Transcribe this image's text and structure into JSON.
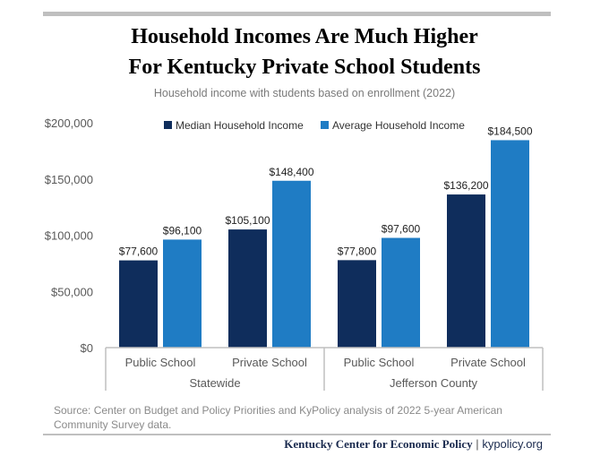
{
  "header": {
    "title_line1": "Household Incomes Are Much Higher",
    "title_line2": "For Kentucky Private School Students",
    "subtitle": "Household income with students based on enrollment (2022)"
  },
  "footer": {
    "source": "Source: Center on Budget and Policy Priorities and KyPolicy analysis of 2022 5-year American Community Survey data.",
    "org": "Kentucky Center for Economic Policy",
    "separator": "|",
    "site": "kypolicy.org"
  },
  "colors": {
    "median": "#0f2d5c",
    "average": "#1f7cc4",
    "axis_text": "#595959",
    "rule": "#bfbfbf"
  },
  "chart_data": {
    "type": "bar",
    "title": "Household income with students based on enrollment (2022)",
    "categories": [
      "Public School",
      "Private School",
      "Public School",
      "Private School"
    ],
    "groups": [
      {
        "label": "Statewide",
        "categories": [
          "Public School",
          "Private School"
        ]
      },
      {
        "label": "Jefferson County",
        "categories": [
          "Public School",
          "Private School"
        ]
      }
    ],
    "series": [
      {
        "name": "Median Household Income",
        "values": [
          77600,
          105100,
          77800,
          136200
        ],
        "labels": [
          "$77,600",
          "$105,100",
          "$77,800",
          "$136,200"
        ]
      },
      {
        "name": "Average Household Income",
        "values": [
          96100,
          148400,
          97600,
          184500
        ],
        "labels": [
          "$96,100",
          "$148,400",
          "$97,600",
          "$184,500"
        ]
      }
    ],
    "yticks": [
      0,
      50000,
      100000,
      150000,
      200000
    ],
    "ytick_labels": [
      "$0",
      "$50,000",
      "$100,000",
      "$150,000",
      "$200,000"
    ],
    "ylim": [
      0,
      200000
    ],
    "xlabel": "",
    "ylabel": "",
    "grid": false,
    "legend": "top-center"
  }
}
